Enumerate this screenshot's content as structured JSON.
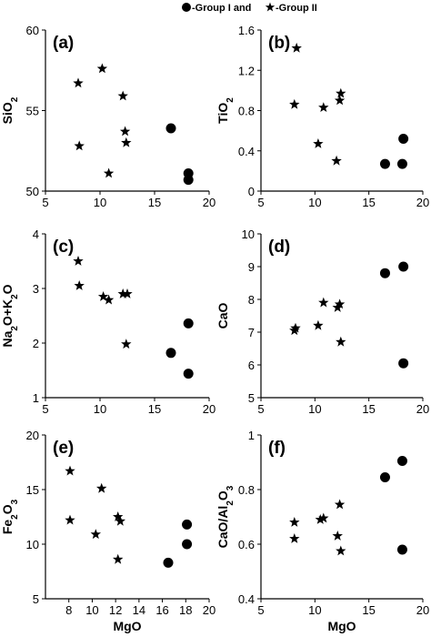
{
  "legend": {
    "text": "-Group I and",
    "text2": "-Group II",
    "group1_marker": "circle",
    "group2_marker": "star"
  },
  "chart_data": [
    {
      "type": "scatter",
      "panel_label": "(a)",
      "ylabel": "SiO2",
      "xlabel": "",
      "xlim": [
        5,
        20
      ],
      "ylim": [
        50,
        60
      ],
      "xticks": [
        "5",
        "10",
        "15",
        "20"
      ],
      "yticks": [
        "50",
        "55",
        "60"
      ],
      "series": [
        {
          "name": "Group I",
          "marker": "circle",
          "points": [
            [
              16.5,
              53.9
            ],
            [
              18.1,
              51.1
            ],
            [
              18.1,
              50.7
            ]
          ]
        },
        {
          "name": "Group II",
          "marker": "star",
          "points": [
            [
              8.0,
              56.7
            ],
            [
              10.2,
              57.6
            ],
            [
              12.1,
              55.9
            ],
            [
              12.3,
              53.7
            ],
            [
              12.4,
              53.0
            ],
            [
              8.1,
              52.8
            ],
            [
              10.8,
              51.1
            ]
          ]
        }
      ]
    },
    {
      "type": "scatter",
      "panel_label": "(b)",
      "ylabel": "TiO2",
      "xlabel": "",
      "xlim": [
        5,
        20
      ],
      "ylim": [
        0,
        1.6
      ],
      "xticks": [
        "5",
        "10",
        "15",
        "20"
      ],
      "yticks": [
        "0",
        "0.4",
        "0.8",
        "1.2",
        "1.6"
      ],
      "series": [
        {
          "name": "Group I",
          "marker": "circle",
          "points": [
            [
              16.5,
              0.27
            ],
            [
              18.1,
              0.27
            ],
            [
              18.2,
              0.52
            ]
          ]
        },
        {
          "name": "Group II",
          "marker": "star",
          "points": [
            [
              8.3,
              1.42
            ],
            [
              8.1,
              0.86
            ],
            [
              10.8,
              0.83
            ],
            [
              12.3,
              0.9
            ],
            [
              12.4,
              0.97
            ],
            [
              10.3,
              0.47
            ],
            [
              12.0,
              0.3
            ]
          ]
        }
      ]
    },
    {
      "type": "scatter",
      "panel_label": "(c)",
      "ylabel": "Na2O+K2O",
      "xlabel": "",
      "xlim": [
        5,
        20
      ],
      "ylim": [
        1,
        4
      ],
      "xticks": [
        "5",
        "10",
        "15",
        "20"
      ],
      "yticks": [
        "1",
        "2",
        "3",
        "4"
      ],
      "series": [
        {
          "name": "Group I",
          "marker": "circle",
          "points": [
            [
              16.5,
              1.82
            ],
            [
              18.1,
              2.36
            ],
            [
              18.1,
              1.44
            ]
          ]
        },
        {
          "name": "Group II",
          "marker": "star",
          "points": [
            [
              8.0,
              3.5
            ],
            [
              8.1,
              3.05
            ],
            [
              10.3,
              2.85
            ],
            [
              10.8,
              2.79
            ],
            [
              12.1,
              2.9
            ],
            [
              12.5,
              2.9
            ],
            [
              12.4,
              1.98
            ]
          ]
        }
      ]
    },
    {
      "type": "scatter",
      "panel_label": "(d)",
      "ylabel": "CaO",
      "xlabel": "",
      "xlim": [
        5,
        20
      ],
      "ylim": [
        5,
        10
      ],
      "xticks": [
        "5",
        "10",
        "15",
        "20"
      ],
      "yticks": [
        "5",
        "6",
        "7",
        "8",
        "9",
        "10"
      ],
      "series": [
        {
          "name": "Group I",
          "marker": "circle",
          "points": [
            [
              16.5,
              8.8
            ],
            [
              18.2,
              9.0
            ],
            [
              18.2,
              6.05
            ]
          ]
        },
        {
          "name": "Group II",
          "marker": "star",
          "points": [
            [
              8.1,
              7.05
            ],
            [
              8.2,
              7.12
            ],
            [
              10.3,
              7.2
            ],
            [
              10.8,
              7.9
            ],
            [
              12.1,
              7.75
            ],
            [
              12.3,
              7.85
            ],
            [
              12.4,
              6.7
            ]
          ]
        }
      ]
    },
    {
      "type": "scatter",
      "panel_label": "(e)",
      "ylabel": "Fe2O3",
      "xlabel": "MgO",
      "xlim": [
        6,
        20
      ],
      "ylim": [
        5,
        20
      ],
      "xticks": [
        "8",
        "10",
        "12",
        "14",
        "16",
        "18",
        "20"
      ],
      "yticks": [
        "5",
        "10",
        "15",
        "20"
      ],
      "series": [
        {
          "name": "Group I",
          "marker": "circle",
          "points": [
            [
              16.5,
              8.3
            ],
            [
              18.1,
              10.0
            ],
            [
              18.1,
              11.8
            ]
          ]
        },
        {
          "name": "Group II",
          "marker": "star",
          "points": [
            [
              8.1,
              16.7
            ],
            [
              10.8,
              15.1
            ],
            [
              8.1,
              12.2
            ],
            [
              10.3,
              10.9
            ],
            [
              12.2,
              12.5
            ],
            [
              12.4,
              12.1
            ],
            [
              12.2,
              8.6
            ]
          ]
        }
      ]
    },
    {
      "type": "scatter",
      "panel_label": "(f)",
      "ylabel": "CaO/Al2O3",
      "xlabel": "MgO",
      "xlim": [
        5,
        20
      ],
      "ylim": [
        0.4,
        1.0
      ],
      "xticks": [
        "5",
        "10",
        "15",
        "20"
      ],
      "yticks": [
        "0.4",
        "0.6",
        "0.8",
        "1"
      ],
      "series": [
        {
          "name": "Group I",
          "marker": "circle",
          "points": [
            [
              16.5,
              0.845
            ],
            [
              18.1,
              0.905
            ],
            [
              18.1,
              0.58
            ]
          ]
        },
        {
          "name": "Group II",
          "marker": "star",
          "points": [
            [
              8.1,
              0.68
            ],
            [
              8.1,
              0.62
            ],
            [
              10.5,
              0.69
            ],
            [
              10.8,
              0.695
            ],
            [
              12.3,
              0.745
            ],
            [
              12.1,
              0.63
            ],
            [
              12.4,
              0.575
            ]
          ]
        }
      ]
    }
  ]
}
